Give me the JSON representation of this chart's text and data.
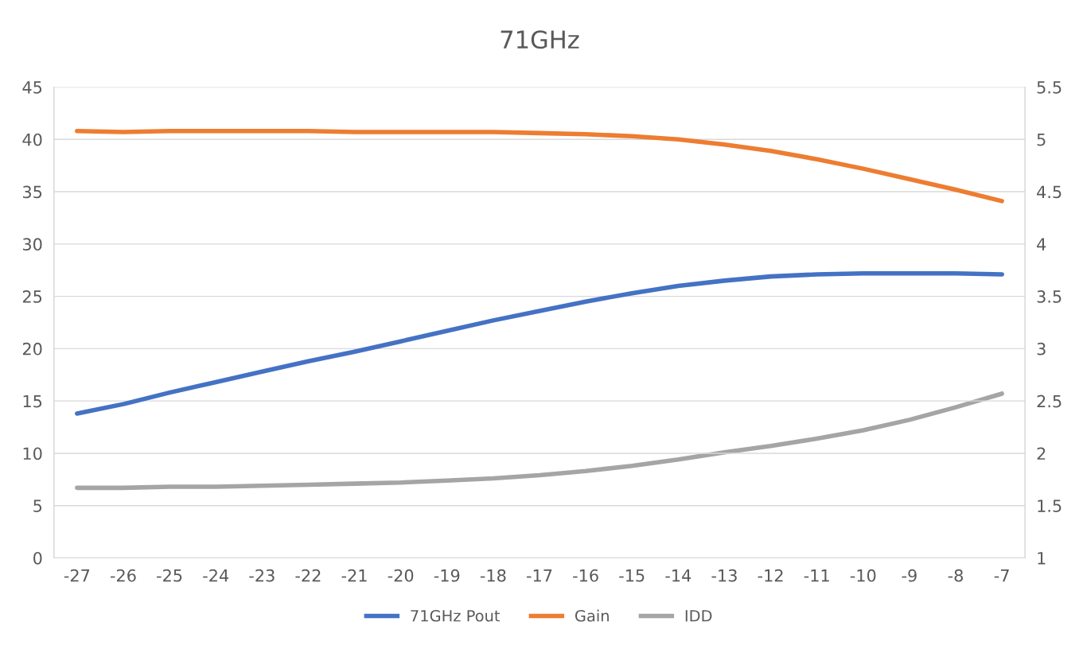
{
  "chart_data": {
    "type": "line",
    "title": "71GHz",
    "categories": [
      "-27",
      "-26",
      "-25",
      "-24",
      "-23",
      "-22",
      "-21",
      "-20",
      "-19",
      "-18",
      "-17",
      "-16",
      "-15",
      "-14",
      "-13",
      "-12",
      "-11",
      "-10",
      "-9",
      "-8",
      "-7"
    ],
    "series": [
      {
        "name": "71GHz Pout",
        "color": "#4472c4",
        "values": [
          13.8,
          14.7,
          15.8,
          16.8,
          17.8,
          18.8,
          19.7,
          20.7,
          21.7,
          22.7,
          23.6,
          24.5,
          25.3,
          26.0,
          26.5,
          26.9,
          27.1,
          27.2,
          27.2,
          27.2,
          27.1
        ]
      },
      {
        "name": "Gain",
        "color": "#ed7d31",
        "values": [
          40.8,
          40.7,
          40.8,
          40.8,
          40.8,
          40.8,
          40.7,
          40.7,
          40.7,
          40.7,
          40.6,
          40.5,
          40.3,
          40.0,
          39.5,
          38.9,
          38.1,
          37.2,
          36.2,
          35.2,
          34.1
        ]
      },
      {
        "name": "IDD",
        "color": "#a5a5a5",
        "axis": "y2",
        "values": [
          1.67,
          1.67,
          1.68,
          1.68,
          1.69,
          1.7,
          1.71,
          1.72,
          1.74,
          1.76,
          1.79,
          1.83,
          1.88,
          1.94,
          2.01,
          2.07,
          2.14,
          2.22,
          2.32,
          2.44,
          2.57
        ]
      }
    ],
    "ylim": [
      0,
      45
    ],
    "yticks": [
      0,
      5,
      10,
      15,
      20,
      25,
      30,
      35,
      40,
      45
    ],
    "y2lim": [
      1,
      5.5
    ],
    "y2ticks": [
      1,
      1.5,
      2,
      2.5,
      3,
      3.5,
      4,
      4.5,
      5,
      5.5
    ],
    "grid": "y",
    "legend": "bottom",
    "marker": "none",
    "line_style": "solid"
  }
}
